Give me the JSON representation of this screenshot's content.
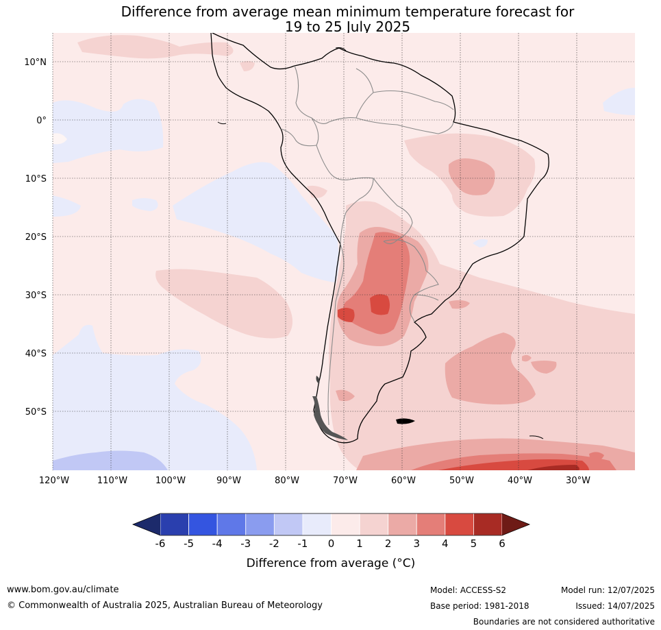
{
  "title": {
    "line1": "Difference from average mean minimum temperature forecast for",
    "line2": "19 to 25 July 2025"
  },
  "map": {
    "lat_labels": [
      "10°N",
      "0°",
      "10°S",
      "20°S",
      "30°S",
      "40°S",
      "50°S"
    ],
    "lon_labels": [
      "120°W",
      "110°W",
      "100°W",
      "90°W",
      "80°W",
      "70°W",
      "60°W",
      "50°W",
      "40°W",
      "30°W"
    ]
  },
  "legend": {
    "ticks": [
      "-6",
      "-5",
      "-4",
      "-3",
      "-2",
      "-1",
      "0",
      "1",
      "2",
      "3",
      "4",
      "5",
      "6"
    ],
    "colors": [
      "#2a3fae",
      "#3455e0",
      "#5f78e8",
      "#8a9cef",
      "#c1c8f5",
      "#e8ebfb",
      "#fcebea",
      "#f5d3d1",
      "#ebaaa6",
      "#e47e78",
      "#d84a40",
      "#a82b24"
    ],
    "under_color": "#1c2a6b",
    "over_color": "#6e1b16",
    "label": "Difference from average (°C)"
  },
  "footer": {
    "website": "www.bom.gov.au/climate",
    "copyright": "© Commonwealth of Australia 2025, Australian Bureau of Meteorology",
    "model": "Model: ACCESS-S2",
    "base_period": "Base period: 1981-2018",
    "model_run": "Model run: 12/07/2025",
    "issued": "Issued: 14/07/2025",
    "boundaries": "Boundaries are not considered authoritative"
  }
}
